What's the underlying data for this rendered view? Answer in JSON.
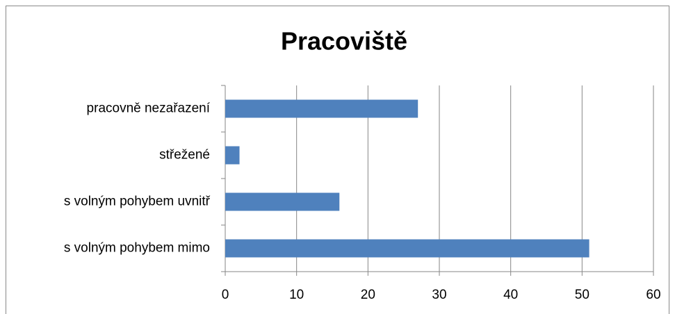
{
  "chart_data": {
    "type": "bar",
    "orientation": "horizontal",
    "title": "Pracoviště",
    "categories": [
      "pracovně nezařazení",
      "střežené",
      "s volným pohybem uvnitř",
      "s volným pohybem mimo"
    ],
    "values": [
      27,
      2,
      16,
      51
    ],
    "color": "#4f81bd",
    "xlim": [
      0,
      60
    ],
    "xticks": [
      0,
      10,
      20,
      30,
      40,
      50,
      60
    ],
    "grid": true
  }
}
